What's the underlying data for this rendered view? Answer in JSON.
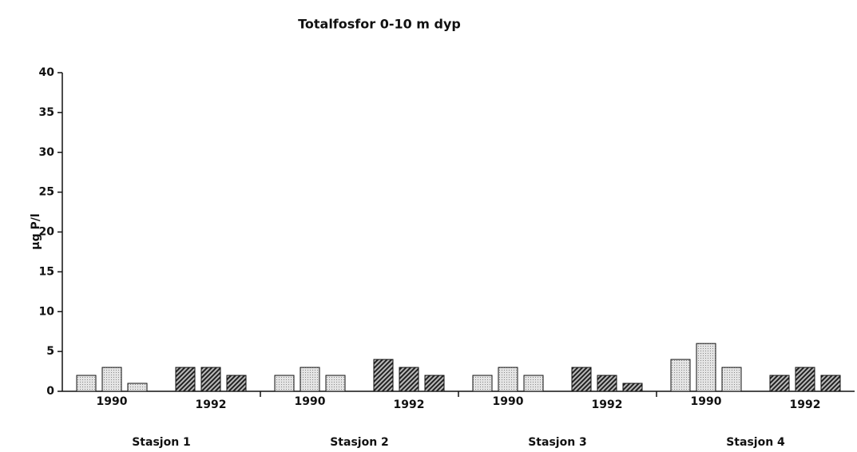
{
  "chart_data": {
    "type": "grouped-bar",
    "title": "Totalfosfor 0-10 m dyp",
    "y_label": "µg P/l",
    "ylim": [
      0,
      40
    ],
    "yticks": [
      0,
      5,
      10,
      15,
      20,
      25,
      30,
      35,
      40
    ],
    "groups": [
      {
        "label": "Stasjon 1",
        "subgroups": [
          {
            "label": "1990",
            "pattern": "dots",
            "values": [
              2,
              3,
              1
            ]
          },
          {
            "label": "1992",
            "pattern": "hatch",
            "values": [
              3,
              3,
              2
            ]
          }
        ]
      },
      {
        "label": "Stasjon 2",
        "subgroups": [
          {
            "label": "1990",
            "pattern": "dots",
            "values": [
              2,
              3,
              2
            ]
          },
          {
            "label": "1992",
            "pattern": "hatch",
            "values": [
              4,
              3,
              2
            ]
          }
        ]
      },
      {
        "label": "Stasjon 3",
        "subgroups": [
          {
            "label": "1990",
            "pattern": "dots",
            "values": [
              2,
              3,
              2
            ]
          },
          {
            "label": "1992",
            "pattern": "hatch",
            "values": [
              3,
              2,
              1
            ]
          }
        ]
      },
      {
        "label": "Stasjon 4",
        "subgroups": [
          {
            "label": "1990",
            "pattern": "dots",
            "values": [
              4,
              6,
              3
            ]
          },
          {
            "label": "1992",
            "pattern": "hatch",
            "values": [
              2,
              3,
              2
            ]
          }
        ]
      }
    ]
  }
}
